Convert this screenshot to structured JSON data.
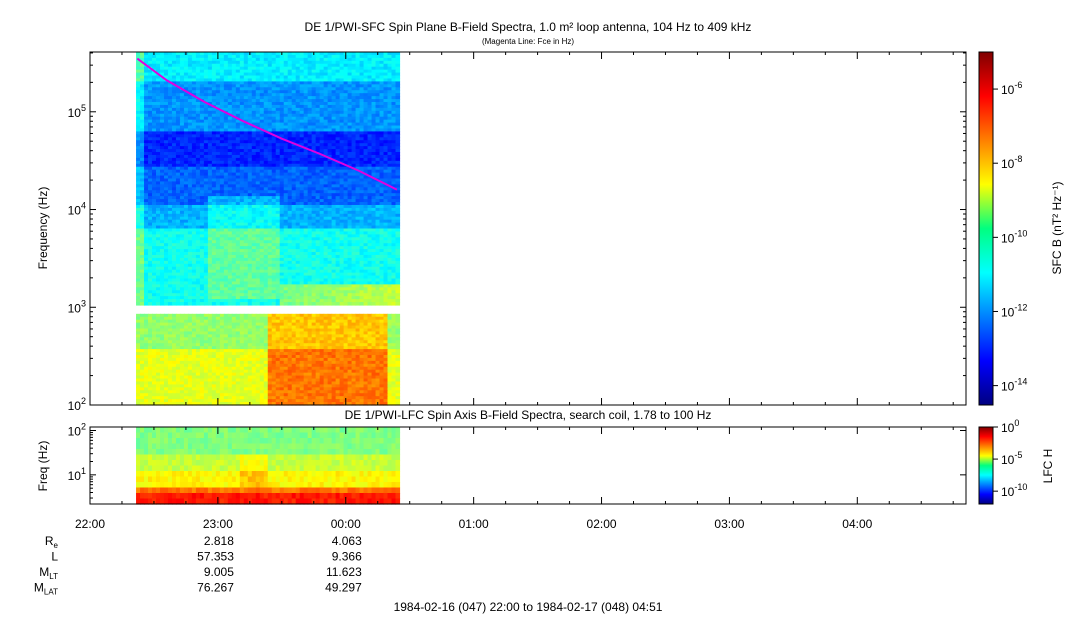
{
  "chart_data": [
    {
      "type": "heatmap",
      "title": "DE 1/PWI-SFC  Spin Plane B-Field Spectra, 1.0 m² loop antenna, 104 Hz to 409 kHz",
      "subtitle": "(Magenta Line: Fce in Hz)",
      "ylabel": "Frequency (Hz)",
      "yscale": "log",
      "ylim": [
        100,
        409000
      ],
      "y_ticks": [
        {
          "value": 100,
          "mant": "10",
          "exp": "2"
        },
        {
          "value": 1000,
          "mant": "10",
          "exp": "3"
        },
        {
          "value": 10000,
          "mant": "10",
          "exp": "4"
        },
        {
          "value": 100000,
          "mant": "10",
          "exp": "5"
        }
      ],
      "x_hours": [
        22.0,
        28.85
      ],
      "data_hours": [
        22.36,
        24.42
      ],
      "colorbar": {
        "label": "SFC B (nT² Hz⁻¹)",
        "scale": "log",
        "range": [
          3e-15,
          1e-05
        ],
        "ticks": [
          {
            "value": 1e-06,
            "mant": "10",
            "exp": "-6"
          },
          {
            "value": 1e-08,
            "mant": "10",
            "exp": "-8"
          },
          {
            "value": 1e-10,
            "mant": "10",
            "exp": "-10"
          },
          {
            "value": 1e-12,
            "mant": "10",
            "exp": "-12"
          },
          {
            "value": 1e-14,
            "mant": "10",
            "exp": "-14"
          }
        ]
      },
      "fce_line": {
        "color": "#e000e0",
        "hours": [
          22.37,
          22.6,
          22.9,
          23.2,
          23.5,
          23.8,
          24.1,
          24.4
        ],
        "freq_hz": [
          350000,
          210000,
          125000,
          80000,
          53000,
          37000,
          25000,
          16000
        ]
      }
    },
    {
      "type": "heatmap",
      "title": "DE 1/PWI-LFC  Spin Axis B-Field Spectra, search coil, 1.78 to 100 Hz",
      "ylabel": "Freq (Hz)",
      "yscale": "log",
      "ylim": [
        2.2,
        120
      ],
      "y_ticks": [
        {
          "value": 100,
          "mant": "10",
          "exp": "2"
        },
        {
          "value": 10,
          "mant": "10",
          "exp": "1"
        }
      ],
      "data_hours": [
        22.36,
        24.42
      ],
      "colorbar": {
        "label": "LFC H",
        "scale": "log",
        "range": [
          1e-12,
          1
        ],
        "ticks": [
          {
            "value": 1,
            "mant": "10",
            "exp": "0"
          },
          {
            "value": 1e-05,
            "mant": "10",
            "exp": "-5"
          },
          {
            "value": 1e-10,
            "mant": "10",
            "exp": "-10"
          }
        ]
      }
    }
  ],
  "x_axis": {
    "tick_labels": [
      {
        "hour": 22,
        "label": "22:00"
      },
      {
        "hour": 23,
        "label": "23:00"
      },
      {
        "hour": 24,
        "label": "00:00"
      },
      {
        "hour": 25,
        "label": "01:00"
      },
      {
        "hour": 26,
        "label": "02:00"
      },
      {
        "hour": 27,
        "label": "03:00"
      },
      {
        "hour": 28,
        "label": "04:00"
      }
    ],
    "ephemeris": [
      {
        "name": "R",
        "sub": "e",
        "values": [
          "2.818",
          "4.063"
        ]
      },
      {
        "name": "L",
        "sub": "",
        "values": [
          "57.353",
          "9.366"
        ]
      },
      {
        "name": "M",
        "sub": "LT",
        "values": [
          "9.005",
          "11.623"
        ]
      },
      {
        "name": "M",
        "sub": "LAT",
        "values": [
          "76.267",
          "49.297"
        ]
      }
    ],
    "time_range": "1984-02-16 (047) 22:00 to 1984-02-17 (048) 04:51"
  }
}
